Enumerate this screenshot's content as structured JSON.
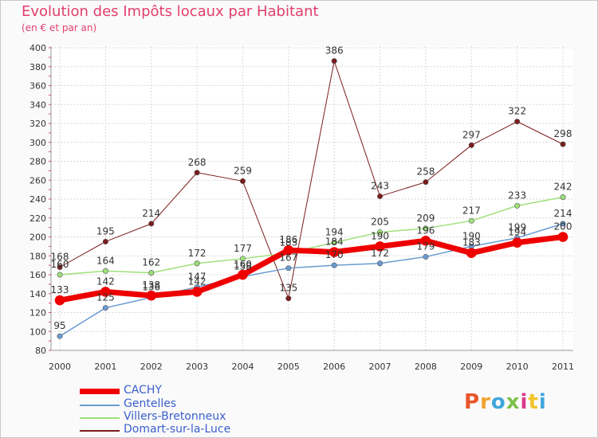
{
  "header": {
    "title": "Evolution des Impôts locaux par Habitant",
    "subtitle": "(en € et par an)"
  },
  "logo": {
    "text": "Proxiti",
    "colors": [
      "#e8552a",
      "#f2a22c",
      "#3fa6dc",
      "#7cc14a",
      "#d93a8c",
      "#f2c42c",
      "#3fa6dc"
    ]
  },
  "chart_data": {
    "type": "line",
    "x": [
      2000,
      2001,
      2002,
      2003,
      2004,
      2005,
      2006,
      2007,
      2008,
      2009,
      2010,
      2011
    ],
    "ylim": [
      80,
      400
    ],
    "yticks": [
      80,
      100,
      120,
      140,
      160,
      180,
      200,
      220,
      240,
      260,
      280,
      300,
      320,
      340,
      360,
      380,
      400
    ],
    "grid": true,
    "legend_position": "bottom-left",
    "series": [
      {
        "name": "Domart-sur-la-Luce",
        "color": "#7b1c1c",
        "width": 1,
        "values": [
          168,
          195,
          214,
          268,
          259,
          135,
          386,
          243,
          258,
          297,
          322,
          298
        ]
      },
      {
        "name": "Villers-Bretonneux",
        "color": "#9ee07a",
        "width": 1.5,
        "values": [
          160,
          164,
          162,
          172,
          177,
          183,
          194,
          205,
          209,
          217,
          233,
          242
        ]
      },
      {
        "name": "Gentelles",
        "color": "#6a9bd1",
        "width": 1.5,
        "values": [
          95,
          125,
          136,
          147,
          158,
          167,
          170,
          172,
          179,
          190,
          199,
          214
        ]
      },
      {
        "name": "CACHY",
        "color": "#ee0000",
        "width": 7,
        "values": [
          133,
          142,
          138,
          142,
          160,
          186,
          184,
          190,
          196,
          183,
          194,
          200
        ]
      }
    ],
    "data_labels": {
      "Domart-sur-la-Luce": [
        "168",
        "195",
        "214",
        "268",
        "259",
        "135",
        "386",
        "243",
        "258",
        "297",
        "322",
        "298"
      ],
      "Villers-Bretonneux": [
        "160",
        "164",
        "162",
        "172",
        "177",
        "183",
        "194",
        "205",
        "209",
        "217",
        "233",
        "242"
      ],
      "Gentelles": [
        "95",
        "125",
        "136",
        "147",
        "158",
        "167",
        "170",
        "172",
        "179",
        "190",
        "199",
        "214"
      ],
      "CACHY": [
        "133",
        "142",
        "138",
        "142",
        "160",
        "186",
        "184",
        "190",
        "196",
        "183",
        "194",
        "200"
      ]
    }
  },
  "legend": [
    {
      "name": "CACHY",
      "color": "#ee0000",
      "width": 7
    },
    {
      "name": "Gentelles",
      "color": "#6a9bd1",
      "width": 2
    },
    {
      "name": "Villers-Bretonneux",
      "color": "#9ee07a",
      "width": 2
    },
    {
      "name": "Domart-sur-la-Luce",
      "color": "#7b1c1c",
      "width": 2
    }
  ]
}
